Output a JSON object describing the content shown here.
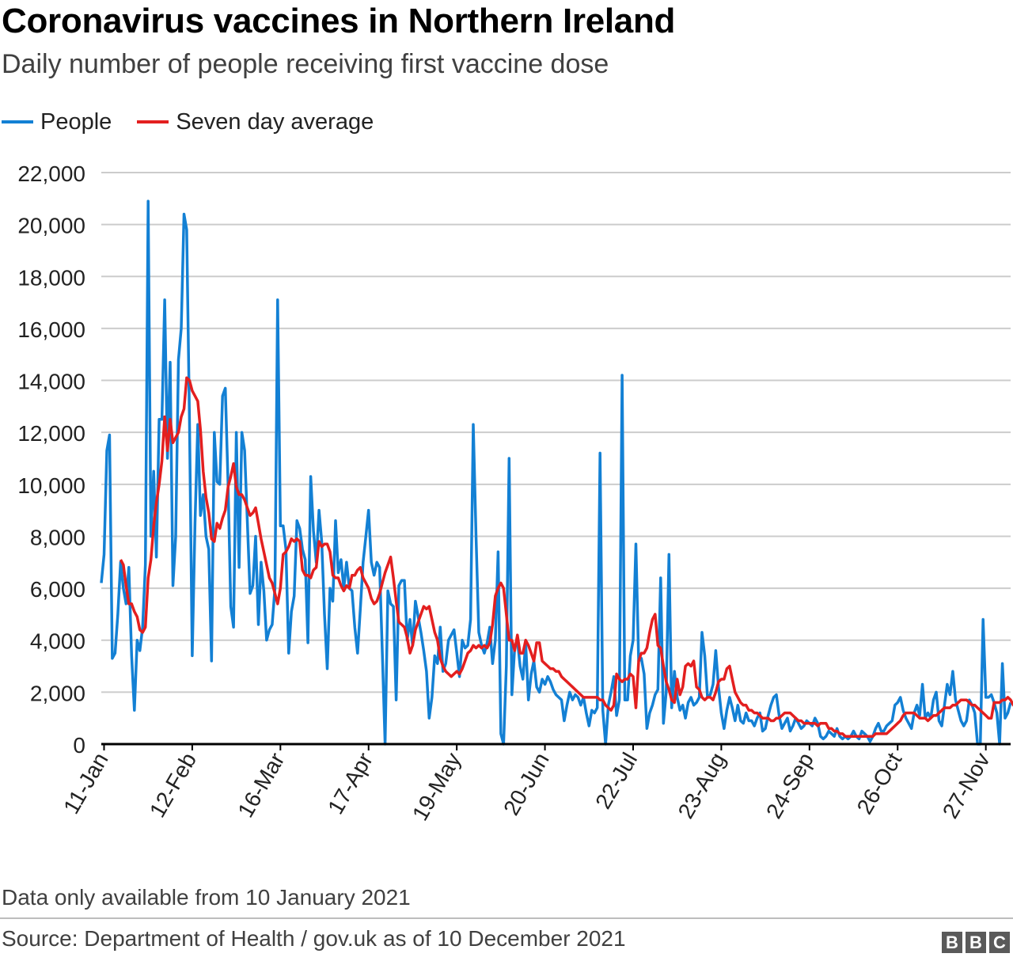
{
  "title": "Coronavirus vaccines in Northern Ireland",
  "subtitle": "Daily number of people receiving first vaccine dose",
  "note": "Data only available from 10 January 2021",
  "source": "Source: Department of Health / gov.uk as of 10 December 2021",
  "logo": [
    "B",
    "B",
    "C"
  ],
  "colors": {
    "people": "#1380d4",
    "average": "#e31f1f",
    "grid": "#cccccc",
    "axis": "#000000"
  },
  "chart_data": {
    "type": "line",
    "title": "Coronavirus vaccines in Northern Ireland",
    "subtitle": "Daily number of people receiving first vaccine dose",
    "xlabel": "",
    "ylabel": "",
    "x_start": "10-Jan",
    "x_end": "10-Dec",
    "xticks": [
      "11-Jan",
      "12-Feb",
      "16-Mar",
      "17-Apr",
      "19-May",
      "20-Jun",
      "22-Jul",
      "23-Aug",
      "24-Sep",
      "26-Oct",
      "27-Nov"
    ],
    "xtick_day_index": [
      1,
      33,
      65,
      97,
      129,
      161,
      193,
      225,
      257,
      289,
      321
    ],
    "yticks": [
      "0",
      "2,000",
      "4,000",
      "6,000",
      "8,000",
      "10,000",
      "12,000",
      "14,000",
      "16,000",
      "18,000",
      "20,000",
      "22,000"
    ],
    "ylim": [
      0,
      22000
    ],
    "grid": true,
    "legend_position": "top-left",
    "series": [
      {
        "name": "People",
        "values": [
          6200,
          7300,
          11300,
          11900,
          3300,
          3500,
          5000,
          7000,
          6000,
          5400,
          6800,
          3400,
          1300,
          4000,
          3600,
          4500,
          6900,
          20900,
          8000,
          10500,
          7200,
          12500,
          12500,
          17100,
          11000,
          14700,
          6100,
          8000,
          14800,
          16000,
          20400,
          19800,
          12500,
          3400,
          8500,
          12300,
          8800,
          9600,
          8000,
          7500,
          3200,
          12000,
          10100,
          10000,
          13400,
          13700,
          10000,
          5300,
          4500,
          12000,
          6800,
          12000,
          11300,
          8600,
          5800,
          6100,
          8000,
          4600,
          7000,
          5900,
          4000,
          4400,
          4600,
          6000,
          17100,
          8400,
          8400,
          7500,
          3500,
          5100,
          5700,
          8600,
          8300,
          7500,
          7100,
          3900,
          10300,
          8200,
          7000,
          9000,
          7800,
          5000,
          2900,
          6000,
          5500,
          8600,
          6600,
          7100,
          6000,
          7000,
          6000,
          5900,
          4500,
          3500,
          5200,
          7000,
          8000,
          9000,
          7000,
          6500,
          7000,
          6800,
          3500,
          0,
          5900,
          5400,
          5300,
          1700,
          6100,
          6300,
          6300,
          4000,
          4800,
          3800,
          5500,
          4900,
          4300,
          3600,
          2800,
          1000,
          1800,
          3400,
          3100,
          4500,
          2800,
          3100,
          4000,
          4200,
          4400,
          3500,
          2600,
          4000,
          3700,
          3800,
          4800,
          12300,
          8000,
          4300,
          3800,
          3500,
          3900,
          4500,
          3100,
          4000,
          7400,
          400,
          0,
          3000,
          11000,
          1900,
          3700,
          4000,
          3000,
          2500,
          3900,
          1700,
          2700,
          3200,
          2200,
          2000,
          2500,
          2300,
          2600,
          2400,
          2100,
          1900,
          1800,
          1700,
          900,
          1500,
          2000,
          1700,
          1900,
          1800,
          1500,
          1800,
          1200,
          700,
          1300,
          1200,
          1400,
          11200,
          1300,
          0,
          1500,
          2000,
          2600,
          1100,
          1700,
          14200,
          1700,
          1700,
          3400,
          4000,
          7700,
          3200,
          3300,
          2700,
          600,
          1200,
          1500,
          1900,
          2100,
          6400,
          800,
          2000,
          7300,
          1400,
          2800,
          1800,
          1300,
          1500,
          1000,
          1600,
          1800,
          1500,
          1600,
          1800,
          4300,
          3400,
          1800,
          1900,
          2300,
          3600,
          2200,
          1200,
          600,
          1300,
          1800,
          1400,
          900,
          1500,
          900,
          800,
          1200,
          900,
          900,
          700,
          1000,
          1200,
          500,
          600,
          1100,
          1500,
          1800,
          1900,
          1100,
          600,
          800,
          1000,
          500,
          700,
          1000,
          800,
          600,
          700,
          900,
          800,
          700,
          1000,
          800,
          300,
          200,
          300,
          500,
          400,
          300,
          600,
          300,
          200,
          300,
          200,
          300,
          500,
          300,
          200,
          500,
          400,
          300,
          100,
          300,
          600,
          800,
          500,
          500,
          700,
          800,
          900,
          1500,
          1600,
          1800,
          1300,
          1000,
          800,
          600,
          1200,
          1500,
          1100,
          2300,
          1000,
          1200,
          1000,
          1700,
          2000,
          900,
          700,
          1500,
          2300,
          1900,
          2800,
          1700,
          1300,
          900,
          700,
          900,
          1700,
          1500,
          1200,
          0,
          0,
          4800,
          1800,
          1800,
          1900,
          1600,
          1200,
          0,
          3100,
          1000,
          1200,
          1600
        ]
      },
      {
        "name": "Seven day average",
        "start_index": 7,
        "values": [
          7100,
          6900,
          6100,
          5400,
          5400,
          5100,
          4900,
          4400,
          4300,
          4500,
          6400,
          7100,
          8400,
          9300,
          10000,
          10900,
          12600,
          11300,
          12500,
          11600,
          11800,
          12000,
          12600,
          12900,
          14100,
          14000,
          13600,
          13400,
          13200,
          12100,
          10500,
          9500,
          8900,
          7900,
          7800,
          8500,
          8300,
          8700,
          9000,
          9900,
          10300,
          10800,
          9900,
          9600,
          9600,
          9400,
          9100,
          8800,
          8900,
          9100,
          8500,
          7900,
          7400,
          6900,
          6400,
          6200,
          5800,
          5400,
          6000,
          7300,
          7400,
          7600,
          7900,
          7800,
          7900,
          7800,
          6700,
          6500,
          6500,
          6400,
          6700,
          6800,
          7800,
          7600,
          7700,
          7700,
          7400,
          6500,
          6400,
          6400,
          6100,
          5900,
          6100,
          6000,
          6500,
          6500,
          6700,
          6800,
          6400,
          6200,
          6000,
          5600,
          5400,
          5500,
          5800,
          6200,
          6600,
          6900,
          7200,
          6400,
          5500,
          4700,
          4600,
          4500,
          4100,
          3500,
          3800,
          4400,
          4700,
          5000,
          5300,
          5200,
          5300,
          4800,
          4300,
          4000,
          3300,
          3000,
          2800,
          2700,
          2600,
          2700,
          2800,
          2700,
          2900,
          3200,
          3500,
          3600,
          3800,
          3700,
          3800,
          3700,
          3800,
          3700,
          3900,
          4600,
          5700,
          6000,
          6200,
          6000,
          5000,
          4000,
          4000,
          3600,
          4200,
          3500,
          3500,
          4000,
          3800,
          3500,
          3200,
          3900,
          3900,
          3200,
          3100,
          3000,
          2900,
          2900,
          2800,
          2800,
          2600,
          2500,
          2400,
          2300,
          2200,
          2100,
          2000,
          1900,
          1800,
          1800,
          1800,
          1800,
          1800,
          1800,
          1700,
          1700,
          1500,
          1400,
          1300,
          1500,
          2700,
          2500,
          2400,
          2500,
          2500,
          2700,
          2600,
          1400,
          3200,
          3500,
          3500,
          3700,
          4300,
          4800,
          5000,
          3800,
          3700,
          3000,
          2400,
          2100,
          1700,
          1600,
          2500,
          1900,
          2200,
          3000,
          3100,
          3000,
          3200,
          2200,
          2100,
          1800,
          1700,
          1800,
          1800,
          1700,
          2000,
          2400,
          2500,
          2500,
          2900,
          3000,
          2500,
          2000,
          1800,
          1600,
          1500,
          1500,
          1300,
          1300,
          1200,
          1200,
          1100,
          1000,
          1000,
          1000,
          900,
          900,
          1000,
          1000,
          1100,
          1200,
          1200,
          1200,
          1100,
          1000,
          900,
          900,
          800,
          800,
          800,
          800,
          800,
          700,
          800,
          800,
          800,
          600,
          600,
          500,
          500,
          400,
          400,
          300,
          300,
          300,
          300,
          300,
          300,
          300,
          300,
          300,
          300,
          300,
          400,
          400,
          400,
          400,
          400,
          500,
          600,
          700,
          800,
          900,
          1100,
          1200,
          1200,
          1200,
          1200,
          1100,
          1000,
          1000,
          1000,
          900,
          1000,
          1100,
          1100,
          1200,
          1300,
          1400,
          1400,
          1400,
          1500,
          1500,
          1600,
          1700,
          1700,
          1700,
          1600,
          1500,
          1500,
          1400,
          1300,
          1200,
          1100,
          1000,
          1000,
          1600,
          1600,
          1600,
          1700,
          1700,
          1800,
          1700,
          1500,
          1500,
          1500
        ]
      }
    ]
  }
}
